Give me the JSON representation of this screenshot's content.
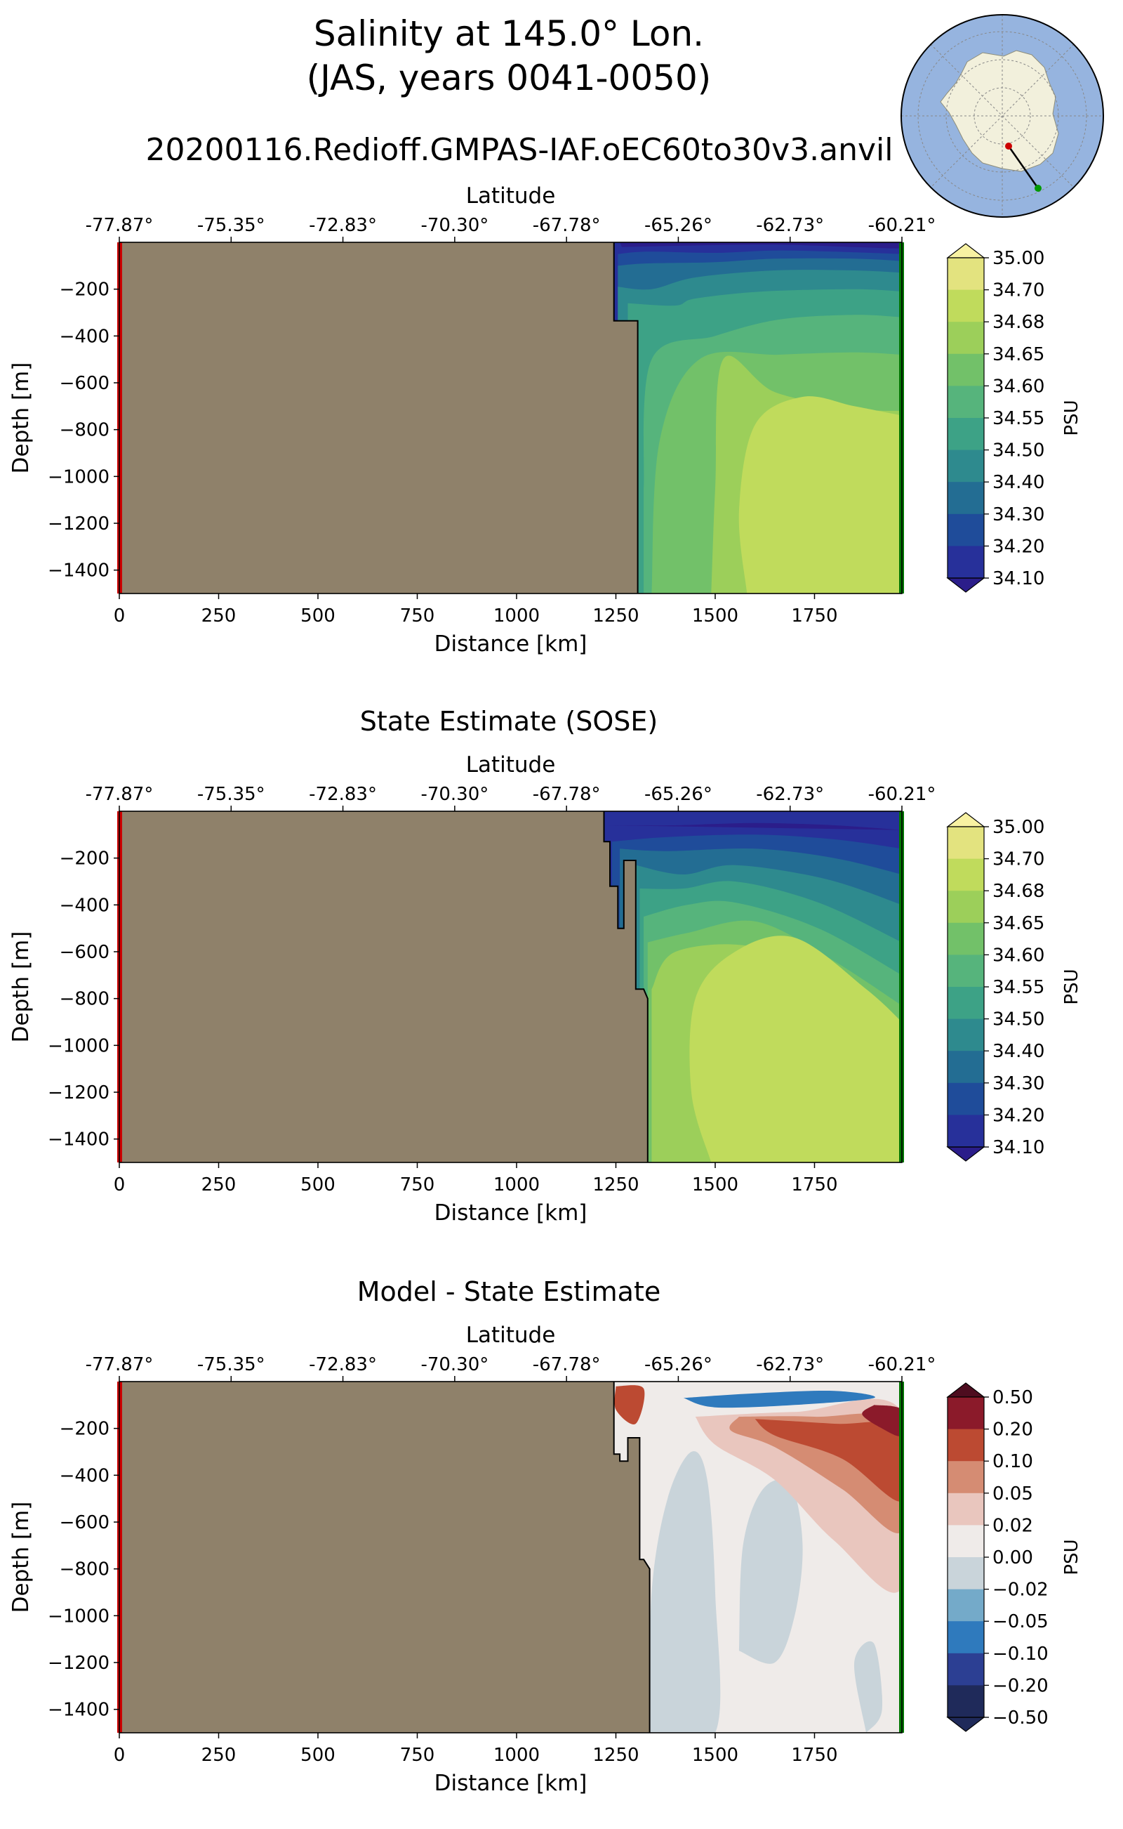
{
  "title": {
    "line1": "Salinity at 145.0° Lon.",
    "line2": "(JAS, years 0041-0050)",
    "run": "20200116.Redioff.GMPAS-IAF.oEC60to30v3.anvil"
  },
  "colors": {
    "land": "#8f816a",
    "start_marker": "#cc0000",
    "end_marker": "#007700",
    "salinity": [
      "#2b1d8a",
      "#27309a",
      "#1f4c9a",
      "#236d93",
      "#2e8a8e",
      "#3da286",
      "#56b47c",
      "#72c169",
      "#9ccf5a",
      "#c0db5c",
      "#e3e37f",
      "#f8f2a2"
    ],
    "anomaly": [
      "#1f2a5a",
      "#2c3f93",
      "#2f7abd",
      "#74aac9",
      "#c9d4da",
      "#efebe9",
      "#e9c6be",
      "#d58c73",
      "#bc4a32",
      "#8b1a2a",
      "#4e0d1f"
    ]
  },
  "chart_data": [
    {
      "type": "contour-section",
      "title": "",
      "xlabel": "Distance [km]",
      "ylabel": "Depth [m]",
      "top_label": "Latitude",
      "xlim": [
        0,
        1970
      ],
      "ylim": [
        -1500,
        0
      ],
      "x_ticks": [
        "0",
        "250",
        "500",
        "750",
        "1000",
        "1250",
        "1500",
        "1750"
      ],
      "y_ticks": [
        "−200",
        "−400",
        "−600",
        "−800",
        "−1000",
        "−1200",
        "−1400"
      ],
      "lat_ticks": [
        "-77.87°",
        "-75.35°",
        "-72.83°",
        "-70.30°",
        "-67.78°",
        "-65.26°",
        "-62.73°",
        "-60.21°"
      ],
      "colorbar": {
        "label": "PSU",
        "kind": "salinity",
        "levels": [
          "35.00",
          "34.70",
          "34.68",
          "34.65",
          "34.60",
          "34.55",
          "34.50",
          "34.40",
          "34.30",
          "34.20",
          "34.10"
        ]
      },
      "land_boundary": [
        [
          1245,
          0
        ],
        [
          1245,
          -335
        ],
        [
          1305,
          -335
        ],
        [
          1305,
          -1500
        ]
      ],
      "contours_psu": [
        {
          "level": "34.20",
          "points": [
            [
              1260,
              0
            ],
            [
              1970,
              0
            ],
            [
              1970,
              -25
            ],
            [
              1850,
              -20
            ],
            [
              1620,
              -10
            ],
            [
              1265,
              -20
            ]
          ]
        },
        {
          "level": "34.30",
          "points": [
            [
              1255,
              -50
            ],
            [
              1330,
              -40
            ],
            [
              1500,
              -45
            ],
            [
              1650,
              -35
            ],
            [
              1800,
              -40
            ],
            [
              1970,
              -50
            ]
          ]
        },
        {
          "level": "34.40",
          "points": [
            [
              1255,
              -100
            ],
            [
              1330,
              -90
            ],
            [
              1500,
              -85
            ],
            [
              1650,
              -70
            ],
            [
              1850,
              -70
            ],
            [
              1970,
              -80
            ]
          ]
        },
        {
          "level": "34.50",
          "points": [
            [
              1255,
              -190
            ],
            [
              1340,
              -200
            ],
            [
              1450,
              -150
            ],
            [
              1650,
              -120
            ],
            [
              1850,
              -120
            ],
            [
              1970,
              -130
            ]
          ]
        },
        {
          "level": "34.55",
          "points": [
            [
              1280,
              -260
            ],
            [
              1400,
              -270
            ],
            [
              1450,
              -240
            ],
            [
              1620,
              -210
            ],
            [
              1850,
              -200
            ],
            [
              1970,
              -210
            ]
          ]
        },
        {
          "level": "34.60",
          "points": [
            [
              1320,
              -1050
            ],
            [
              1340,
              -500
            ],
            [
              1500,
              -400
            ],
            [
              1660,
              -330
            ],
            [
              1850,
              -310
            ],
            [
              1970,
              -320
            ]
          ]
        },
        {
          "level": "34.65",
          "points": [
            [
              1340,
              -1500
            ],
            [
              1360,
              -850
            ],
            [
              1460,
              -500
            ],
            [
              1660,
              -480
            ],
            [
              1850,
              -470
            ],
            [
              1970,
              -480
            ]
          ]
        },
        {
          "level": "34.68",
          "points": [
            [
              1490,
              -1500
            ],
            [
              1500,
              -1050
            ],
            [
              1520,
              -500
            ],
            [
              1650,
              -640
            ],
            [
              1850,
              -710
            ],
            [
              1970,
              -720
            ]
          ]
        },
        {
          "level": "34.70",
          "points": [
            [
              1580,
              -1500
            ],
            [
              1560,
              -1150
            ],
            [
              1600,
              -780
            ],
            [
              1720,
              -660
            ],
            [
              1850,
              -700
            ],
            [
              1970,
              -740
            ]
          ]
        }
      ]
    },
    {
      "type": "contour-section",
      "title": "State Estimate (SOSE)",
      "xlabel": "Distance [km]",
      "ylabel": "Depth [m]",
      "top_label": "Latitude",
      "xlim": [
        0,
        1970
      ],
      "ylim": [
        -1500,
        0
      ],
      "x_ticks": [
        "0",
        "250",
        "500",
        "750",
        "1000",
        "1250",
        "1500",
        "1750"
      ],
      "y_ticks": [
        "−200",
        "−400",
        "−600",
        "−800",
        "−1000",
        "−1200",
        "−1400"
      ],
      "lat_ticks": [
        "-77.87°",
        "-75.35°",
        "-72.83°",
        "-70.30°",
        "-67.78°",
        "-65.26°",
        "-62.73°",
        "-60.21°"
      ],
      "colorbar": {
        "label": "PSU",
        "kind": "salinity",
        "levels": [
          "35.00",
          "34.70",
          "34.68",
          "34.65",
          "34.60",
          "34.55",
          "34.50",
          "34.40",
          "34.30",
          "34.20",
          "34.10"
        ]
      },
      "land_boundary": [
        [
          1220,
          0
        ],
        [
          1220,
          -130
        ],
        [
          1235,
          -130
        ],
        [
          1235,
          -320
        ],
        [
          1255,
          -320
        ],
        [
          1255,
          -500
        ],
        [
          1270,
          -500
        ],
        [
          1270,
          -210
        ],
        [
          1300,
          -210
        ],
        [
          1300,
          -760
        ],
        [
          1320,
          -760
        ],
        [
          1330,
          -800
        ],
        [
          1330,
          -1500
        ]
      ],
      "contours_psu": [
        {
          "level": "34.20",
          "points": [
            [
              1230,
              -60
            ],
            [
              1400,
              -60
            ],
            [
              1600,
              -50
            ],
            [
              1800,
              -60
            ],
            [
              1970,
              -80
            ]
          ]
        },
        {
          "level": "34.30",
          "points": [
            [
              1240,
              -130
            ],
            [
              1380,
              -110
            ],
            [
              1600,
              -100
            ],
            [
              1800,
              -120
            ],
            [
              1970,
              -160
            ]
          ]
        },
        {
          "level": "34.40",
          "points": [
            [
              1260,
              -160
            ],
            [
              1380,
              -170
            ],
            [
              1600,
              -160
            ],
            [
              1800,
              -200
            ],
            [
              1970,
              -270
            ]
          ]
        },
        {
          "level": "34.50",
          "points": [
            [
              1300,
              -230
            ],
            [
              1420,
              -270
            ],
            [
              1550,
              -230
            ],
            [
              1780,
              -290
            ],
            [
              1970,
              -400
            ]
          ]
        },
        {
          "level": "34.55",
          "points": [
            [
              1310,
              -330
            ],
            [
              1420,
              -330
            ],
            [
              1550,
              -300
            ],
            [
              1760,
              -390
            ],
            [
              1970,
              -560
            ]
          ]
        },
        {
          "level": "34.60",
          "points": [
            [
              1320,
              -450
            ],
            [
              1430,
              -400
            ],
            [
              1550,
              -390
            ],
            [
              1760,
              -500
            ],
            [
              1970,
              -700
            ]
          ]
        },
        {
          "level": "34.65",
          "points": [
            [
              1330,
              -560
            ],
            [
              1430,
              -520
            ],
            [
              1600,
              -470
            ],
            [
              1780,
              -620
            ],
            [
              1970,
              -830
            ]
          ]
        },
        {
          "level": "34.68",
          "points": [
            [
              1340,
              -760
            ],
            [
              1400,
              -600
            ],
            [
              1600,
              -580
            ],
            [
              1800,
              -740
            ],
            [
              1970,
              -900
            ]
          ]
        },
        {
          "level": "34.70",
          "points": [
            [
              1490,
              -1500
            ],
            [
              1440,
              -1200
            ],
            [
              1450,
              -800
            ],
            [
              1550,
              -600
            ],
            [
              1700,
              -540
            ],
            [
              1880,
              -760
            ],
            [
              1970,
              -900
            ]
          ]
        }
      ]
    },
    {
      "type": "contour-section",
      "title": "Model - State Estimate",
      "xlabel": "Distance [km]",
      "ylabel": "Depth [m]",
      "top_label": "Latitude",
      "xlim": [
        0,
        1970
      ],
      "ylim": [
        -1500,
        0
      ],
      "x_ticks": [
        "0",
        "250",
        "500",
        "750",
        "1000",
        "1250",
        "1500",
        "1750"
      ],
      "y_ticks": [
        "−200",
        "−400",
        "−600",
        "−800",
        "−1000",
        "−1200",
        "−1400"
      ],
      "lat_ticks": [
        "-77.87°",
        "-75.35°",
        "-72.83°",
        "-70.30°",
        "-67.78°",
        "-65.26°",
        "-62.73°",
        "-60.21°"
      ],
      "colorbar": {
        "label": "PSU",
        "kind": "anomaly",
        "levels": [
          "0.50",
          "0.20",
          "0.10",
          "0.05",
          "0.02",
          "0.00",
          "−0.02",
          "−0.05",
          "−0.10",
          "−0.20",
          "−0.50"
        ]
      },
      "land_boundary": [
        [
          1245,
          0
        ],
        [
          1245,
          -310
        ],
        [
          1260,
          -310
        ],
        [
          1260,
          -340
        ],
        [
          1280,
          -340
        ],
        [
          1280,
          -240
        ],
        [
          1310,
          -240
        ],
        [
          1310,
          -760
        ],
        [
          1320,
          -760
        ],
        [
          1335,
          -800
        ],
        [
          1335,
          -1500
        ]
      ],
      "anomaly_regions": [
        {
          "value": "−0.02",
          "points": [
            [
              1335,
              -1500
            ],
            [
              1340,
              -900
            ],
            [
              1380,
              -500
            ],
            [
              1440,
              -300
            ],
            [
              1480,
              -420
            ],
            [
              1500,
              -900
            ],
            [
              1500,
              -1500
            ]
          ]
        },
        {
          "value": "−0.02",
          "points": [
            [
              1560,
              -1150
            ],
            [
              1570,
              -700
            ],
            [
              1620,
              -460
            ],
            [
              1690,
              -440
            ],
            [
              1720,
              -700
            ],
            [
              1700,
              -1000
            ],
            [
              1650,
              -1200
            ]
          ]
        },
        {
          "value": "−0.02",
          "points": [
            [
              1880,
              -1500
            ],
            [
              1850,
              -1200
            ],
            [
              1900,
              -1120
            ],
            [
              1920,
              -1400
            ]
          ]
        },
        {
          "value": "0.02",
          "points": [
            [
              1450,
              -150
            ],
            [
              1700,
              -130
            ],
            [
              1970,
              -130
            ],
            [
              1970,
              -880
            ],
            [
              1800,
              -680
            ],
            [
              1650,
              -420
            ],
            [
              1500,
              -270
            ]
          ]
        },
        {
          "value": "0.05",
          "points": [
            [
              1560,
              -150
            ],
            [
              1750,
              -150
            ],
            [
              1970,
              -180
            ],
            [
              1970,
              -640
            ],
            [
              1820,
              -460
            ],
            [
              1650,
              -280
            ],
            [
              1540,
              -210
            ]
          ]
        },
        {
          "value": "0.10",
          "points": [
            [
              1600,
              -160
            ],
            [
              1800,
              -180
            ],
            [
              1970,
              -200
            ],
            [
              1970,
              -510
            ],
            [
              1820,
              -330
            ],
            [
              1650,
              -230
            ]
          ]
        },
        {
          "value": "0.20",
          "points": [
            [
              1900,
              -100
            ],
            [
              1970,
              -120
            ],
            [
              1970,
              -230
            ],
            [
              1920,
              -200
            ],
            [
              1870,
              -140
            ]
          ]
        },
        {
          "value": "0.10",
          "points": [
            [
              1250,
              -20
            ],
            [
              1320,
              -30
            ],
            [
              1300,
              -180
            ],
            [
              1250,
              -120
            ]
          ]
        },
        {
          "value": "−0.10",
          "points": [
            [
              1420,
              -70
            ],
            [
              1600,
              -50
            ],
            [
              1800,
              -40
            ],
            [
              1900,
              -70
            ],
            [
              1700,
              -100
            ],
            [
              1500,
              -110
            ]
          ]
        }
      ]
    }
  ]
}
